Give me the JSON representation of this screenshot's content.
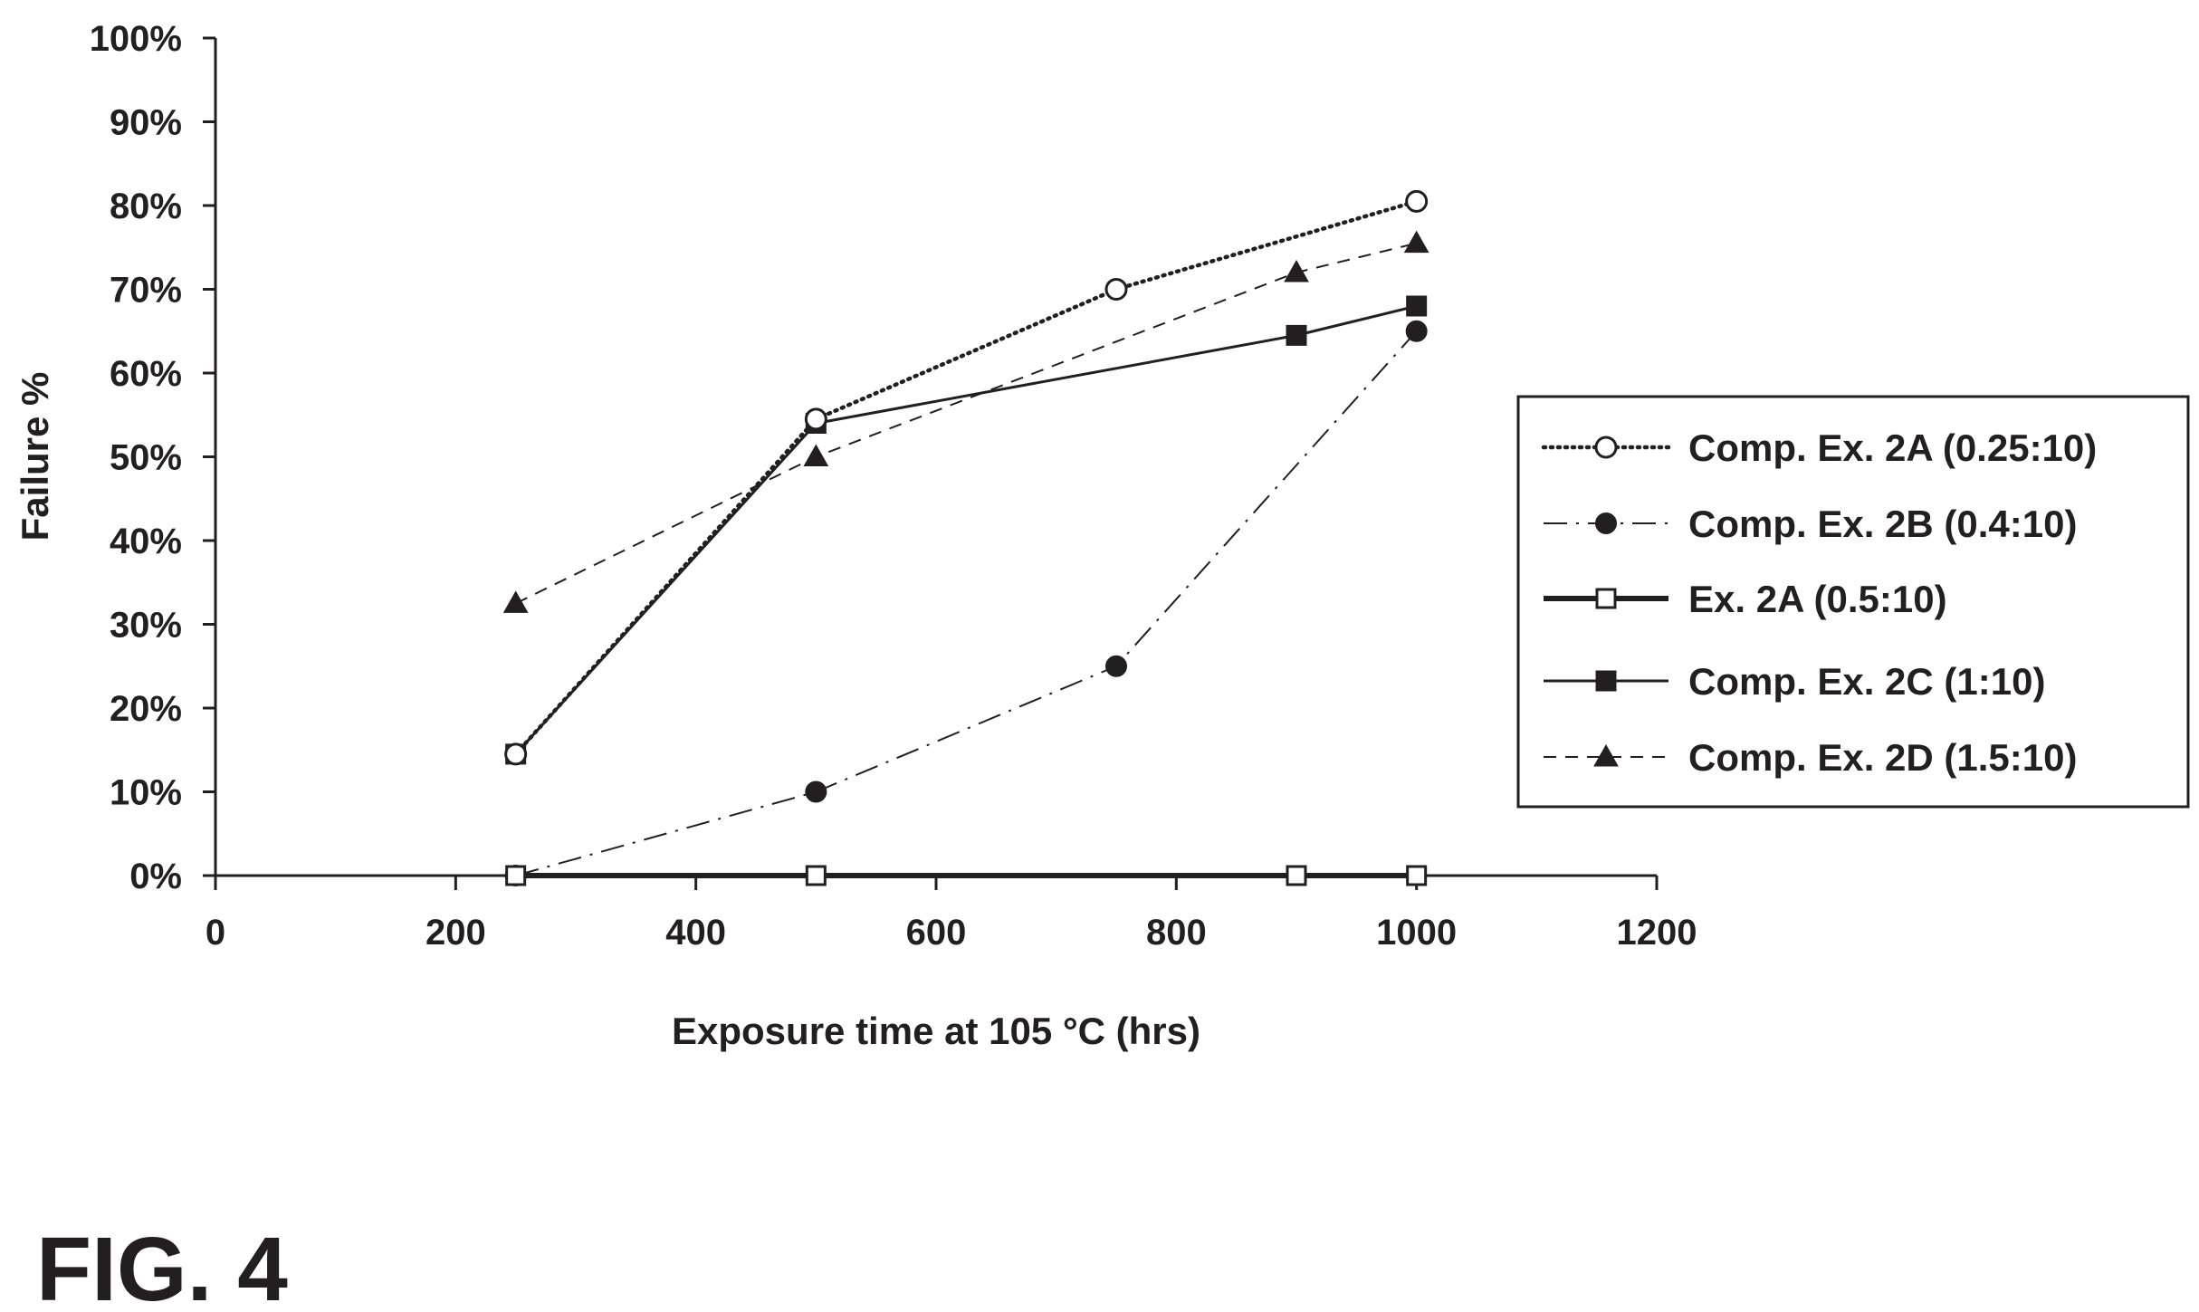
{
  "figure_label": "FIG. 4",
  "chart_data": {
    "type": "line",
    "title": "",
    "xlabel": "Exposure time at 105 °C (hrs)",
    "ylabel": "Failure %",
    "xlim": [
      0,
      1200
    ],
    "ylim": [
      0,
      100
    ],
    "x_ticks": [
      0,
      200,
      400,
      600,
      800,
      1000,
      1200
    ],
    "y_ticks": [
      0,
      10,
      20,
      30,
      40,
      50,
      60,
      70,
      80,
      90,
      100
    ],
    "y_tick_labels": [
      "0%",
      "10%",
      "20%",
      "30%",
      "40%",
      "50%",
      "60%",
      "70%",
      "80%",
      "90%",
      "100%"
    ],
    "grid": false,
    "legend_position": "right",
    "series": [
      {
        "name": "Comp. Ex. 2A (0.25:10)",
        "line_style": "dotted",
        "marker": "open-circle",
        "points": [
          [
            250,
            14.5
          ],
          [
            500,
            54.5
          ],
          [
            750,
            70
          ],
          [
            1000,
            80.5
          ]
        ]
      },
      {
        "name": "Comp. Ex. 2B (0.4:10)",
        "line_style": "dash-dot",
        "marker": "filled-circle",
        "points": [
          [
            250,
            0
          ],
          [
            500,
            10
          ],
          [
            750,
            25
          ],
          [
            1000,
            65
          ]
        ]
      },
      {
        "name": "Ex. 2A (0.5:10)",
        "line_style": "thick-solid",
        "marker": "open-square",
        "points": [
          [
            250,
            0
          ],
          [
            500,
            0
          ],
          [
            900,
            0
          ],
          [
            1000,
            0
          ]
        ]
      },
      {
        "name": "Comp. Ex. 2C (1:10)",
        "line_style": "solid",
        "marker": "filled-square",
        "points": [
          [
            250,
            14.5
          ],
          [
            500,
            54
          ],
          [
            900,
            64.5
          ],
          [
            1000,
            68
          ]
        ]
      },
      {
        "name": "Comp. Ex. 2D (1.5:10)",
        "line_style": "dashed",
        "marker": "filled-triangle",
        "points": [
          [
            250,
            32.5
          ],
          [
            500,
            50
          ],
          [
            900,
            72
          ],
          [
            1000,
            75.5
          ]
        ]
      }
    ]
  }
}
